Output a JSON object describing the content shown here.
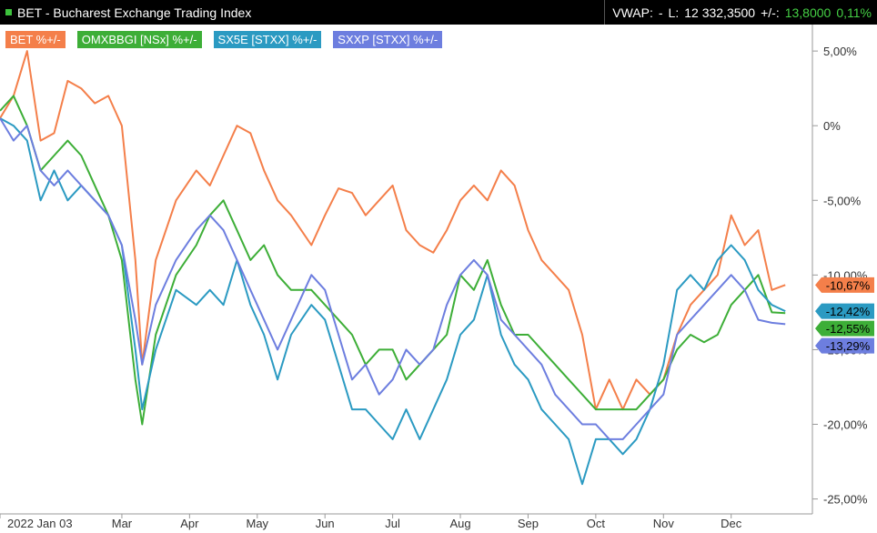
{
  "header": {
    "title": "BET - Bucharest Exchange Trading Index",
    "vwap_label": "VWAP:",
    "vwap_value": "-",
    "last_label": "L:",
    "last_value": "12 332,3500",
    "change_label": "+/-:",
    "change_value": "13,8000",
    "change_pct": "0,11%"
  },
  "colors": {
    "bet": "#f47f4a",
    "omx": "#3dae37",
    "sx5e": "#2b9ac2",
    "sxxp": "#6d7edf",
    "up": "#45d045"
  },
  "chart_data": {
    "type": "line",
    "title": "BET - Bucharest Exchange Trading Index",
    "xlabel": "",
    "ylabel": "",
    "x_ticks": [
      "2022 Jan 03",
      "Mar",
      "Apr",
      "May",
      "Jun",
      "Jul",
      "Aug",
      "Sep",
      "Oct",
      "Nov",
      "Dec"
    ],
    "x_tick_pos": [
      0,
      1.8,
      2.8,
      3.8,
      4.8,
      5.8,
      6.8,
      7.8,
      8.8,
      9.8,
      10.8
    ],
    "y_ticks": [
      "5,00%",
      "0%",
      "-5,00%",
      "-10,00%",
      "-15,00%",
      "-20,00%",
      "-25,00%"
    ],
    "y_tick_values": [
      5,
      0,
      -5,
      -10,
      -15,
      -20,
      -25
    ],
    "xlim": [
      0,
      12.0
    ],
    "ylim": [
      -26.0,
      7.2
    ],
    "grid": false,
    "legend_position": "top-left",
    "series": [
      {
        "name": "BET %+/-",
        "color": "#f47f4a",
        "last_label": "-10,67%",
        "points": [
          [
            0,
            0.5
          ],
          [
            0.2,
            2
          ],
          [
            0.4,
            5
          ],
          [
            0.6,
            -1
          ],
          [
            0.8,
            -0.5
          ],
          [
            1,
            3
          ],
          [
            1.2,
            2.5
          ],
          [
            1.4,
            1.5
          ],
          [
            1.6,
            2
          ],
          [
            1.8,
            0
          ],
          [
            2,
            -9
          ],
          [
            2.1,
            -16
          ],
          [
            2.3,
            -9
          ],
          [
            2.6,
            -5
          ],
          [
            2.9,
            -3
          ],
          [
            3.1,
            -4
          ],
          [
            3.3,
            -2
          ],
          [
            3.5,
            0
          ],
          [
            3.7,
            -0.5
          ],
          [
            3.9,
            -3
          ],
          [
            4.1,
            -5
          ],
          [
            4.3,
            -6
          ],
          [
            4.6,
            -8
          ],
          [
            4.8,
            -6
          ],
          [
            5,
            -4.2
          ],
          [
            5.2,
            -4.5
          ],
          [
            5.4,
            -6
          ],
          [
            5.6,
            -5
          ],
          [
            5.8,
            -4
          ],
          [
            6,
            -7
          ],
          [
            6.2,
            -8
          ],
          [
            6.4,
            -8.5
          ],
          [
            6.6,
            -7
          ],
          [
            6.8,
            -5
          ],
          [
            7,
            -4
          ],
          [
            7.2,
            -5
          ],
          [
            7.4,
            -3
          ],
          [
            7.6,
            -4
          ],
          [
            7.8,
            -7
          ],
          [
            8,
            -9
          ],
          [
            8.2,
            -10
          ],
          [
            8.4,
            -11
          ],
          [
            8.6,
            -14
          ],
          [
            8.8,
            -19
          ],
          [
            9,
            -17
          ],
          [
            9.2,
            -19
          ],
          [
            9.4,
            -17
          ],
          [
            9.6,
            -18
          ],
          [
            9.8,
            -17
          ],
          [
            10,
            -14
          ],
          [
            10.2,
            -12
          ],
          [
            10.4,
            -11
          ],
          [
            10.6,
            -10
          ],
          [
            10.8,
            -6
          ],
          [
            11,
            -8
          ],
          [
            11.2,
            -7
          ],
          [
            11.4,
            -11
          ],
          [
            11.6,
            -10.67
          ]
        ]
      },
      {
        "name": "OMXBBGI [NSx] %+/-",
        "color": "#3dae37",
        "last_label": "-12,55%",
        "points": [
          [
            0,
            1
          ],
          [
            0.2,
            2
          ],
          [
            0.4,
            0
          ],
          [
            0.6,
            -3
          ],
          [
            0.8,
            -2
          ],
          [
            1,
            -1
          ],
          [
            1.2,
            -2
          ],
          [
            1.4,
            -4
          ],
          [
            1.6,
            -6
          ],
          [
            1.8,
            -9
          ],
          [
            2,
            -17
          ],
          [
            2.1,
            -20
          ],
          [
            2.3,
            -14
          ],
          [
            2.6,
            -10
          ],
          [
            2.9,
            -8
          ],
          [
            3.1,
            -6
          ],
          [
            3.3,
            -5
          ],
          [
            3.5,
            -7
          ],
          [
            3.7,
            -9
          ],
          [
            3.9,
            -8
          ],
          [
            4.1,
            -10
          ],
          [
            4.3,
            -11
          ],
          [
            4.6,
            -11
          ],
          [
            4.8,
            -12
          ],
          [
            5,
            -13
          ],
          [
            5.2,
            -14
          ],
          [
            5.4,
            -16
          ],
          [
            5.6,
            -15
          ],
          [
            5.8,
            -15
          ],
          [
            6,
            -17
          ],
          [
            6.2,
            -16
          ],
          [
            6.4,
            -15
          ],
          [
            6.6,
            -14
          ],
          [
            6.8,
            -10
          ],
          [
            7,
            -11
          ],
          [
            7.2,
            -9
          ],
          [
            7.4,
            -12
          ],
          [
            7.6,
            -14
          ],
          [
            7.8,
            -14
          ],
          [
            8,
            -15
          ],
          [
            8.2,
            -16
          ],
          [
            8.4,
            -17
          ],
          [
            8.6,
            -18
          ],
          [
            8.8,
            -19
          ],
          [
            9,
            -19
          ],
          [
            9.2,
            -19
          ],
          [
            9.4,
            -19
          ],
          [
            9.6,
            -18
          ],
          [
            9.8,
            -17
          ],
          [
            10,
            -15
          ],
          [
            10.2,
            -14
          ],
          [
            10.4,
            -14.5
          ],
          [
            10.6,
            -14
          ],
          [
            10.8,
            -12
          ],
          [
            11,
            -11
          ],
          [
            11.2,
            -10
          ],
          [
            11.4,
            -12.5
          ],
          [
            11.6,
            -12.55
          ]
        ]
      },
      {
        "name": "SX5E [STXX] %+/-",
        "color": "#2b9ac2",
        "last_label": "-12,42%",
        "points": [
          [
            0,
            0.5
          ],
          [
            0.2,
            0
          ],
          [
            0.4,
            -1
          ],
          [
            0.6,
            -5
          ],
          [
            0.8,
            -3
          ],
          [
            1,
            -5
          ],
          [
            1.2,
            -4
          ],
          [
            1.4,
            -5
          ],
          [
            1.6,
            -6
          ],
          [
            1.8,
            -8
          ],
          [
            2,
            -15
          ],
          [
            2.1,
            -19
          ],
          [
            2.3,
            -15
          ],
          [
            2.6,
            -11
          ],
          [
            2.9,
            -12
          ],
          [
            3.1,
            -11
          ],
          [
            3.3,
            -12
          ],
          [
            3.5,
            -9
          ],
          [
            3.7,
            -12
          ],
          [
            3.9,
            -14
          ],
          [
            4.1,
            -17
          ],
          [
            4.3,
            -14
          ],
          [
            4.6,
            -12
          ],
          [
            4.8,
            -13
          ],
          [
            5,
            -16
          ],
          [
            5.2,
            -19
          ],
          [
            5.4,
            -19
          ],
          [
            5.6,
            -20
          ],
          [
            5.8,
            -21
          ],
          [
            6,
            -19
          ],
          [
            6.2,
            -21
          ],
          [
            6.4,
            -19
          ],
          [
            6.6,
            -17
          ],
          [
            6.8,
            -14
          ],
          [
            7,
            -13
          ],
          [
            7.2,
            -10
          ],
          [
            7.4,
            -14
          ],
          [
            7.6,
            -16
          ],
          [
            7.8,
            -17
          ],
          [
            8,
            -19
          ],
          [
            8.2,
            -20
          ],
          [
            8.4,
            -21
          ],
          [
            8.6,
            -24
          ],
          [
            8.8,
            -21
          ],
          [
            9,
            -21
          ],
          [
            9.2,
            -22
          ],
          [
            9.4,
            -21
          ],
          [
            9.6,
            -19
          ],
          [
            9.8,
            -16
          ],
          [
            10,
            -11
          ],
          [
            10.2,
            -10
          ],
          [
            10.4,
            -11
          ],
          [
            10.6,
            -9
          ],
          [
            10.8,
            -8
          ],
          [
            11,
            -9
          ],
          [
            11.2,
            -11
          ],
          [
            11.4,
            -12
          ],
          [
            11.6,
            -12.42
          ]
        ]
      },
      {
        "name": "SXXP [STXX] %+/-",
        "color": "#6d7edf",
        "last_label": "-13,29%",
        "points": [
          [
            0,
            0.5
          ],
          [
            0.2,
            -1
          ],
          [
            0.4,
            0
          ],
          [
            0.6,
            -3
          ],
          [
            0.8,
            -4
          ],
          [
            1,
            -3
          ],
          [
            1.2,
            -4
          ],
          [
            1.4,
            -5
          ],
          [
            1.6,
            -6
          ],
          [
            1.8,
            -8
          ],
          [
            2,
            -13
          ],
          [
            2.1,
            -16
          ],
          [
            2.3,
            -12
          ],
          [
            2.6,
            -9
          ],
          [
            2.9,
            -7
          ],
          [
            3.1,
            -6
          ],
          [
            3.3,
            -7
          ],
          [
            3.5,
            -9
          ],
          [
            3.7,
            -11
          ],
          [
            3.9,
            -13
          ],
          [
            4.1,
            -15
          ],
          [
            4.3,
            -13
          ],
          [
            4.6,
            -10
          ],
          [
            4.8,
            -11
          ],
          [
            5,
            -14
          ],
          [
            5.2,
            -17
          ],
          [
            5.4,
            -16
          ],
          [
            5.6,
            -18
          ],
          [
            5.8,
            -17
          ],
          [
            6,
            -15
          ],
          [
            6.2,
            -16
          ],
          [
            6.4,
            -15
          ],
          [
            6.6,
            -12
          ],
          [
            6.8,
            -10
          ],
          [
            7,
            -9
          ],
          [
            7.2,
            -10
          ],
          [
            7.4,
            -13
          ],
          [
            7.6,
            -14
          ],
          [
            7.8,
            -15
          ],
          [
            8,
            -16
          ],
          [
            8.2,
            -18
          ],
          [
            8.4,
            -19
          ],
          [
            8.6,
            -20
          ],
          [
            8.8,
            -20
          ],
          [
            9,
            -21
          ],
          [
            9.2,
            -21
          ],
          [
            9.4,
            -20
          ],
          [
            9.6,
            -19
          ],
          [
            9.8,
            -18
          ],
          [
            10,
            -14
          ],
          [
            10.2,
            -13
          ],
          [
            10.4,
            -12
          ],
          [
            10.6,
            -11
          ],
          [
            10.8,
            -10
          ],
          [
            11,
            -11
          ],
          [
            11.2,
            -13
          ],
          [
            11.4,
            -13.2
          ],
          [
            11.6,
            -13.29
          ]
        ]
      }
    ]
  }
}
